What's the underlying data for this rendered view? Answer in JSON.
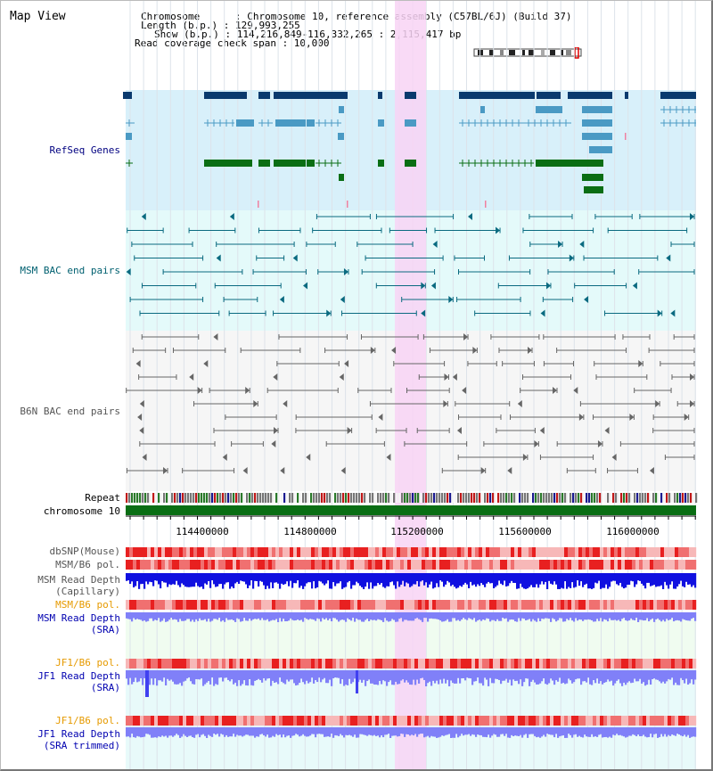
{
  "view_title": "Map View",
  "info": {
    "chromosome_line": "Chromosome      : Chromosome 10, reference assembly (C57BL/6J) (Build 37)",
    "length_line": "Length (b.p.) : 129,993,255",
    "show_line": "Show (b.p.) : 114,216,849-116,332,265 : 2,115,417 bp",
    "span_line": "Read coverage check span : 10,000"
  },
  "tracks": {
    "refseq": "RefSeq Genes",
    "msm_bac": "MSM BAC end pairs",
    "b6n_bac": "B6N BAC end pairs",
    "repeat": "Repeat",
    "chromosome": "chromosome 10",
    "dbsnp": "dbSNP(Mouse)",
    "msm_b6_pol": "MSM/B6 pol.",
    "msm_depth_cap_1": "MSM Read Depth",
    "msm_depth_cap_2": "(Capillary)",
    "msm_b6_pol_2": "MSM/B6 pol.",
    "msm_depth_sra_1": "MSM Read Depth",
    "msm_depth_sra_2": "(SRA)",
    "jf1_b6_pol": "JF1/B6 pol.",
    "jf1_depth_sra_1": "JF1 Read Depth",
    "jf1_depth_sra_2": "(SRA)",
    "jf1_b6_pol_2": "JF1/B6 pol.",
    "jf1_depth_trim_1": "JF1 Read Depth",
    "jf1_depth_trim_2": "(SRA trimmed)"
  },
  "axis": {
    "tick_labels": [
      "114400000",
      "114800000",
      "115200000",
      "115600000",
      "116000000"
    ]
  },
  "colors": {
    "refseq_bg": "#d8f0fa",
    "bac_bg": "#e4fafa",
    "highlight": "#f8d4f4",
    "gene_dark": "#0a3a6e",
    "gene_mid": "#4a9ac4",
    "gene_green": "#0a6e14",
    "chrom_bar": "#0a6e14",
    "snp_red": "#e83030",
    "depth_blue": "#1010e0",
    "depth_light": "#8080f8"
  }
}
